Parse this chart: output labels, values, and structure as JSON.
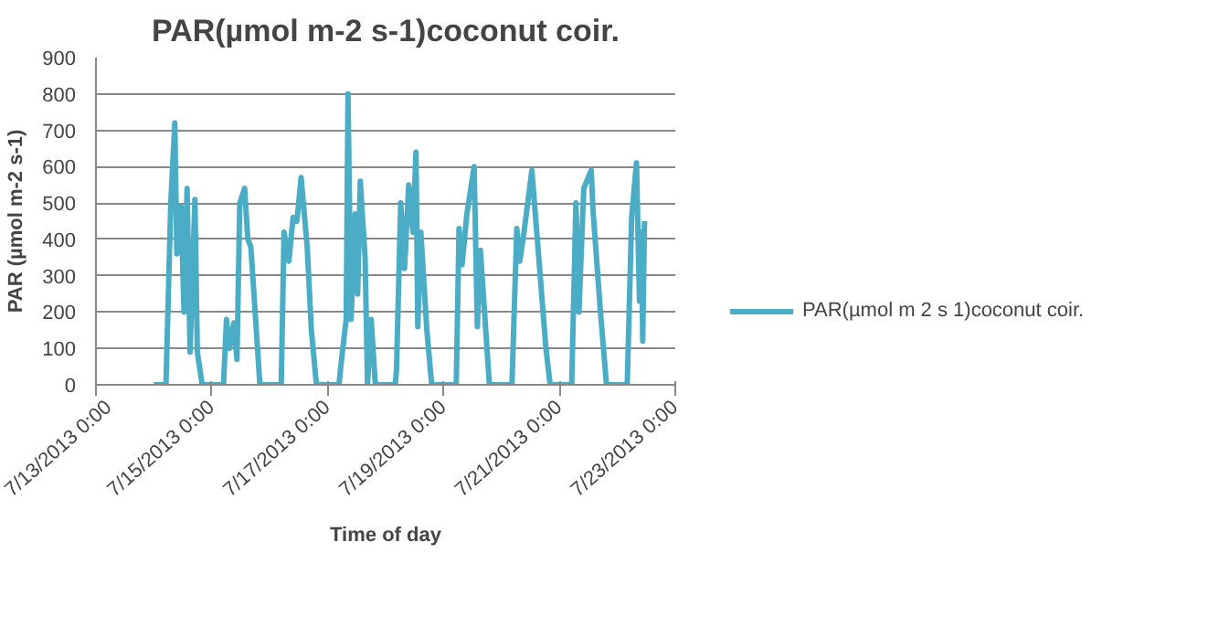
{
  "chart_data": {
    "type": "line",
    "title": "PAR(µmol m-2 s-1)coconut coir.",
    "xlabel": "Time of day",
    "ylabel": "PAR (µmol m-2 s-1)",
    "xlim": [
      "2013-07-13",
      "2013-07-23"
    ],
    "xticks": [
      {
        "value": "2013-07-13",
        "label": "7/13/2013 0:00"
      },
      {
        "value": "2013-07-15",
        "label": "7/15/2013 0:00"
      },
      {
        "value": "2013-07-17",
        "label": "7/17/2013 0:00"
      },
      {
        "value": "2013-07-19",
        "label": "7/19/2013 0:00"
      },
      {
        "value": "2013-07-21",
        "label": "7/21/2013 0:00"
      },
      {
        "value": "2013-07-23",
        "label": "7/23/2013 0:00"
      }
    ],
    "ylim": [
      0,
      900
    ],
    "yticks": [
      0,
      100,
      200,
      300,
      400,
      500,
      600,
      700,
      800,
      900
    ],
    "grid": "y",
    "legend": "right",
    "marker": "none",
    "line_style": "solid",
    "series": [
      {
        "name": "PAR(µmol m 2 s 1)coconut coir.",
        "color": "#4bacc6",
        "x": [
          "2013-07-14T00:00",
          "2013-07-14T05:00",
          "2013-07-14T07:00",
          "2013-07-14T08:40",
          "2013-07-14T09:30",
          "2013-07-14T11:15",
          "2013-07-14T12:30",
          "2013-07-14T13:45",
          "2013-07-14T15:00",
          "2013-07-14T17:00",
          "2013-07-14T18:00",
          "2013-07-14T20:00",
          "2013-07-15T04:50",
          "2013-07-15T06:05",
          "2013-07-15T07:20",
          "2013-07-15T09:05",
          "2013-07-15T10:25",
          "2013-07-15T11:35",
          "2013-07-15T13:35",
          "2013-07-15T14:55",
          "2013-07-15T16:10",
          "2013-07-15T19:55",
          "2013-07-16T04:45",
          "2013-07-16T05:55",
          "2013-07-16T07:55",
          "2013-07-16T09:40",
          "2013-07-16T11:15",
          "2013-07-16T13:00",
          "2013-07-16T15:30",
          "2013-07-16T17:15",
          "2013-07-16T19:20",
          "2013-07-17T04:40",
          "2013-07-17T05:55",
          "2013-07-17T07:40",
          "2013-07-17T08:25",
          "2013-07-17T09:40",
          "2013-07-17T11:25",
          "2013-07-17T12:25",
          "2013-07-17T13:30",
          "2013-07-17T15:30",
          "2013-07-17T16:30",
          "2013-07-17T18:00",
          "2013-07-17T19:45",
          "2013-07-18T04:00",
          "2013-07-18T04:30",
          "2013-07-18T06:15",
          "2013-07-18T07:50",
          "2013-07-18T09:35",
          "2013-07-18T11:20",
          "2013-07-18T12:35",
          "2013-07-18T13:20",
          "2013-07-18T14:35",
          "2013-07-18T17:05",
          "2013-07-18T19:05",
          "2013-07-19T05:15",
          "2013-07-19T06:25",
          "2013-07-19T07:40",
          "2013-07-19T09:40",
          "2013-07-19T12:40",
          "2013-07-19T14:00",
          "2013-07-19T15:15",
          "2013-07-19T19:00",
          "2013-07-20T04:20",
          "2013-07-20T06:20",
          "2013-07-20T07:35",
          "2013-07-20T09:20",
          "2013-07-20T12:35",
          "2013-07-20T15:05",
          "2013-07-20T18:25",
          "2013-07-20T20:10",
          "2013-07-21T05:05",
          "2013-07-21T06:50",
          "2013-07-21T08:05",
          "2013-07-21T10:05",
          "2013-07-21T13:10",
          "2013-07-21T13:55",
          "2013-07-21T17:00",
          "2013-07-21T19:30",
          "2013-07-22T04:05",
          "2013-07-22T05:55",
          "2013-07-22T07:55",
          "2013-07-22T09:10",
          "2013-07-22T10:00",
          "2013-07-22T10:30",
          "2013-07-22T11:15"
        ],
        "values": [
          0,
          0,
          500,
          720,
          360,
          490,
          200,
          540,
          90,
          510,
          90,
          0,
          0,
          180,
          100,
          170,
          70,
          500,
          540,
          400,
          380,
          0,
          0,
          420,
          340,
          460,
          450,
          570,
          380,
          150,
          0,
          0,
          80,
          180,
          800,
          180,
          470,
          250,
          560,
          350,
          0,
          180,
          0,
          0,
          40,
          500,
          320,
          550,
          420,
          640,
          160,
          420,
          150,
          0,
          0,
          430,
          330,
          470,
          600,
          160,
          370,
          0,
          0,
          430,
          340,
          420,
          590,
          380,
          100,
          0,
          0,
          500,
          200,
          540,
          590,
          480,
          200,
          0,
          0,
          460,
          610,
          230,
          420,
          120,
          450
        ]
      }
    ]
  }
}
